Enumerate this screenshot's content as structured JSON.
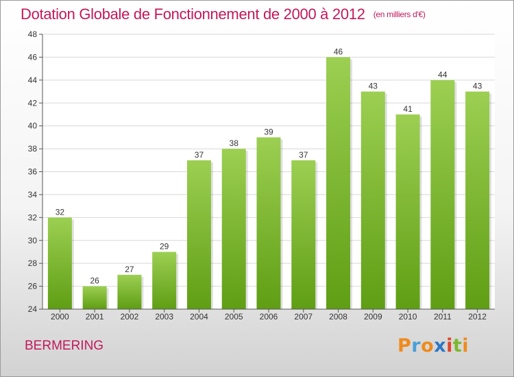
{
  "title": "Dotation Globale de Fonctionnement de 2000 à 2012",
  "subtitle": "(en milliers d'€)",
  "place": "BERMERING",
  "brand": {
    "letters": [
      "P",
      "r",
      "o",
      "x",
      "i",
      "t",
      "i"
    ],
    "colors": [
      "#f08a1c",
      "#4a9fd8",
      "#f08a1c",
      "#2e77c4",
      "#e0452b",
      "#7cb82f",
      "#f08a1c"
    ]
  },
  "colors": {
    "bar_top": "#9ccf52",
    "bar_bottom": "#5f9e14",
    "title": "#c2185b",
    "grid": "#d8d8d8",
    "axis": "#555555"
  },
  "chart_data": {
    "type": "bar",
    "categories": [
      "2000",
      "2001",
      "2002",
      "2003",
      "2004",
      "2005",
      "2006",
      "2007",
      "2008",
      "2009",
      "2010",
      "2011",
      "2012"
    ],
    "values": [
      32,
      26,
      27,
      29,
      37,
      38,
      39,
      37,
      46,
      43,
      41,
      44,
      43
    ],
    "ylim": [
      24,
      48
    ],
    "yticks": [
      24,
      26,
      28,
      30,
      32,
      34,
      36,
      38,
      40,
      42,
      44,
      46,
      48
    ],
    "grid": true
  }
}
